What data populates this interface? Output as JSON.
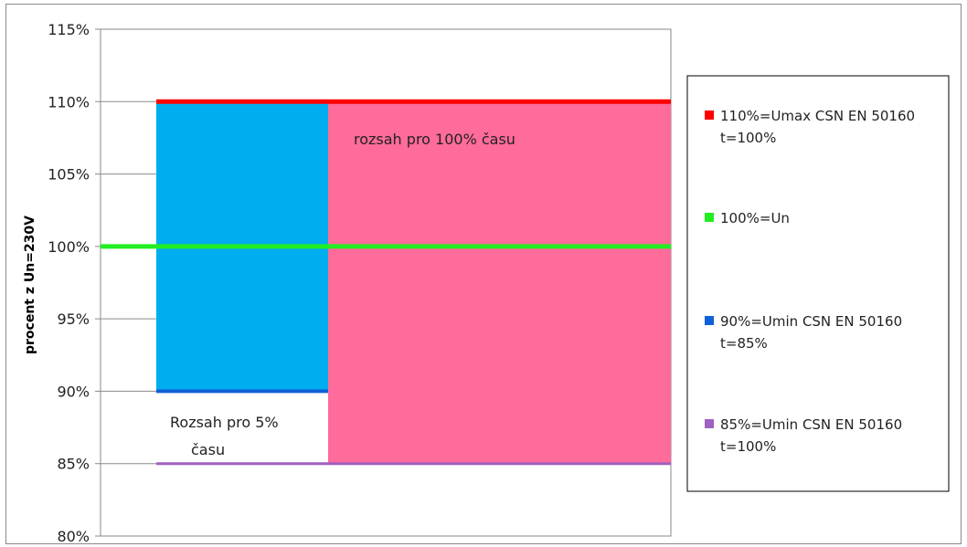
{
  "chart_data": {
    "type": "area",
    "title": "",
    "xlabel": "",
    "ylabel": "procent z Un=230V",
    "ylim": [
      80,
      115
    ],
    "yticks": [
      "115%",
      "110%",
      "105%",
      "100%",
      "95%",
      "90%",
      "85%",
      "80%"
    ],
    "ytick_values": [
      115,
      110,
      105,
      100,
      95,
      90,
      85,
      80
    ],
    "grid": "horizontal",
    "legend_position": "right",
    "regions": [
      {
        "range": [
          90,
          110
        ],
        "label": "",
        "color": "#00AEEF"
      },
      {
        "range": [
          85,
          110
        ],
        "label": "rozsah pro 100% času",
        "color": "#FF6B9A"
      }
    ],
    "annotations": {
      "range_100": "rozsah pro 100% času",
      "range_5_line1": "Rozsah pro 5%",
      "range_5_line2": "času"
    },
    "series": [
      {
        "name": "110%=Umax CSN EN 50160 t=100%",
        "value": 110,
        "color": "#FF0000"
      },
      {
        "name": "100%=Un",
        "value": 100,
        "color": "#22EE22"
      },
      {
        "name": "90%=Umin CSN EN 50160 t=85%",
        "value": 90,
        "color": "#1060D8"
      },
      {
        "name": "85%=Umin CSN EN 50160 t=100%",
        "value": 85,
        "color": "#A060C0"
      }
    ],
    "legend": [
      {
        "line1": "110%=Umax CSN EN 50160",
        "line2": "t=100%",
        "color": "#FF0000"
      },
      {
        "line1": "100%=Un",
        "line2": "",
        "color": "#22EE22"
      },
      {
        "line1": "90%=Umin CSN EN 50160",
        "line2": "t=85%",
        "color": "#1060D8"
      },
      {
        "line1": "85%=Umin CSN EN 50160",
        "line2": "t=100%",
        "color": "#A060C0"
      }
    ]
  }
}
